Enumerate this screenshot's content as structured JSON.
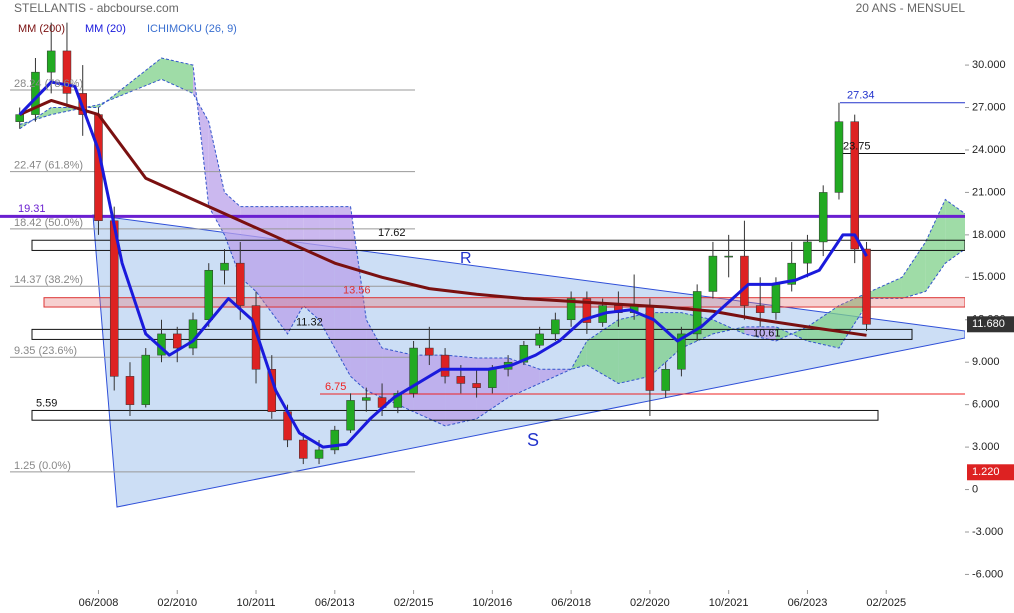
{
  "chart_data": {
    "type": "candlestick",
    "title": "STELLANTIS - abcbourse.com",
    "subtitle": "20 ANS - MENSUEL",
    "xlim": [
      "05/2006",
      "10/2026"
    ],
    "ylim": [
      -7.1,
      34.6
    ],
    "xticks": [
      "06/2008",
      "02/2010",
      "10/2011",
      "06/2013",
      "02/2015",
      "10/2016",
      "06/2018",
      "02/2020",
      "10/2021",
      "06/2023",
      "02/2025"
    ],
    "yticks": [
      {
        "value": 30,
        "label": "30.000"
      },
      {
        "value": 27,
        "label": "27.000"
      },
      {
        "value": 24,
        "label": "24.000"
      },
      {
        "value": 21,
        "label": "21.000"
      },
      {
        "value": 18,
        "label": "18.000"
      },
      {
        "value": 15,
        "label": "15.000"
      },
      {
        "value": 12,
        "label": "12.000"
      },
      {
        "value": 9,
        "label": "9.000"
      },
      {
        "value": 6,
        "label": "6.000"
      },
      {
        "value": 3,
        "label": "3.000"
      },
      0,
      {
        "value": -3,
        "label": "-3.000"
      },
      {
        "value": -6,
        "label": "-6.000"
      }
    ],
    "up_color": "#22aa22",
    "down_color": "#dd2222",
    "candles": {
      "x": [
        "10/2006",
        "02/2007",
        "06/2007",
        "10/2007",
        "02/2008",
        "06/2008",
        "10/2008",
        "02/2009",
        "06/2009",
        "10/2009",
        "02/2010",
        "06/2010",
        "10/2010",
        "02/2011",
        "06/2011",
        "10/2011",
        "02/2012",
        "06/2012",
        "10/2012",
        "02/2013",
        "06/2013",
        "10/2013",
        "02/2014",
        "06/2014",
        "10/2014",
        "02/2015",
        "06/2015",
        "10/2015",
        "02/2016",
        "06/2016",
        "10/2016",
        "02/2017",
        "06/2017",
        "10/2017",
        "02/2018",
        "06/2018",
        "10/2018",
        "02/2019",
        "06/2019",
        "10/2019",
        "02/2020",
        "06/2020",
        "10/2020",
        "02/2021",
        "06/2021",
        "10/2021",
        "02/2022",
        "06/2022",
        "10/2022",
        "02/2023",
        "06/2023",
        "10/2023",
        "02/2024",
        "06/2024",
        "09/2024"
      ],
      "open": [
        26,
        26.5,
        29.5,
        31,
        28,
        26.5,
        19,
        8,
        6,
        9.5,
        11,
        10,
        12,
        15.5,
        16,
        13,
        8.5,
        5.5,
        3.5,
        2.2,
        2.8,
        4.2,
        6.3,
        6.5,
        5.8,
        6.8,
        10,
        9.5,
        8,
        7.5,
        7.2,
        8.5,
        9,
        10.2,
        11,
        12,
        13.5,
        11.8,
        13,
        12.5,
        13,
        7,
        8.5,
        11,
        14,
        16.5,
        16.5,
        13,
        12.5,
        14.5,
        16,
        17.5,
        21,
        26,
        17
      ],
      "high": [
        27,
        30.5,
        33,
        33,
        30,
        27,
        20,
        9,
        10,
        12,
        11.5,
        12.5,
        16,
        17,
        17.5,
        14,
        9.5,
        6,
        4,
        3.5,
        4.5,
        6.8,
        7.2,
        7.5,
        7,
        10.5,
        11.5,
        10,
        8.8,
        8.5,
        8.8,
        9.5,
        10.5,
        11.5,
        12.5,
        14,
        14,
        13.5,
        14,
        15.2,
        13.5,
        9,
        11.5,
        14.5,
        17.5,
        18,
        19,
        15,
        15,
        17.5,
        18,
        21.5,
        27.34,
        26.5,
        17.5
      ],
      "low": [
        25.5,
        26,
        28,
        27,
        25,
        18,
        7,
        5.2,
        5.8,
        9,
        9,
        9.5,
        11.5,
        14.5,
        12,
        7.5,
        5,
        3,
        1.8,
        1.8,
        2.5,
        4,
        5.5,
        5.2,
        5.4,
        6.5,
        8.8,
        7.5,
        6.8,
        6.5,
        6.8,
        8,
        8.8,
        10,
        10.5,
        11.5,
        11,
        11.5,
        11.5,
        12,
        5.2,
        6.5,
        8,
        10.5,
        13.5,
        15,
        12,
        11.5,
        12,
        14,
        15,
        16.5,
        20.5,
        16,
        11.2
      ],
      "close": [
        26.5,
        29.5,
        31,
        28,
        26.5,
        19,
        8,
        6,
        9.5,
        11,
        10,
        12,
        15.5,
        16,
        13,
        8.5,
        5.5,
        3.5,
        2.2,
        2.8,
        4.2,
        6.3,
        6.5,
        5.8,
        6.8,
        10,
        9.5,
        8,
        7.5,
        7.2,
        8.5,
        9,
        10.2,
        11,
        12,
        13.5,
        11.8,
        13,
        12.5,
        13,
        7,
        8.5,
        11,
        14,
        16.5,
        16.5,
        13,
        12.5,
        14.5,
        16,
        17.5,
        21,
        26,
        17,
        11.68
      ]
    },
    "series": [
      {
        "name": "MM (200)",
        "color": "#7a1010",
        "x": [
          "10/2006",
          "06/2007",
          "06/2008",
          "06/2009",
          "06/2010",
          "06/2011",
          "06/2012",
          "06/2013",
          "06/2014",
          "06/2015",
          "06/2016",
          "06/2017",
          "06/2018",
          "06/2019",
          "06/2020",
          "06/2021",
          "06/2022",
          "06/2023",
          "09/2024"
        ],
        "values": [
          26.5,
          27.5,
          26.5,
          22,
          20.5,
          19,
          17.5,
          16,
          15,
          14.2,
          13.8,
          13.5,
          13.3,
          13.1,
          12.9,
          12.6,
          12,
          11.5,
          10.9
        ]
      },
      {
        "name": "MM (20)",
        "color": "#1a1adc",
        "x": [
          "10/2006",
          "06/2007",
          "12/2007",
          "06/2008",
          "12/2008",
          "06/2009",
          "12/2009",
          "06/2010",
          "03/2011",
          "09/2011",
          "03/2012",
          "09/2012",
          "03/2013",
          "09/2013",
          "03/2014",
          "09/2014",
          "03/2015",
          "09/2015",
          "03/2016",
          "09/2016",
          "03/2017",
          "09/2017",
          "03/2018",
          "09/2018",
          "03/2019",
          "09/2019",
          "03/2020",
          "09/2020",
          "03/2021",
          "09/2021",
          "03/2022",
          "09/2022",
          "03/2023",
          "09/2023",
          "03/2024",
          "06/2024",
          "09/2024"
        ],
        "values": [
          26.5,
          28.8,
          28.5,
          24,
          16,
          11,
          9.5,
          10.5,
          13.5,
          12,
          7,
          4,
          3,
          3.2,
          5,
          6.5,
          7.5,
          8.5,
          8.5,
          8.5,
          8.8,
          9.5,
          10.5,
          12,
          12.5,
          12.7,
          12,
          10.5,
          11.5,
          13,
          14.5,
          14.5,
          14.8,
          15.5,
          18,
          18,
          16.5
        ]
      }
    ],
    "ichimoku": {
      "name": "ICHIMOKU (26, 9)",
      "color": "#3a6fd0",
      "up_color": "#7fd08a",
      "down_color": "#b9a0ea",
      "x": [
        "10/2006",
        "06/2007",
        "06/2008",
        "10/2009",
        "06/2010",
        "10/2010",
        "02/2011",
        "06/2011",
        "10/2011",
        "06/2012",
        "10/2012",
        "02/2013",
        "06/2013",
        "10/2013",
        "02/2014",
        "06/2014",
        "02/2015",
        "10/2015",
        "06/2016",
        "02/2017",
        "10/2017",
        "06/2018",
        "10/2018",
        "06/2019",
        "02/2020",
        "10/2020",
        "06/2021",
        "02/2022",
        "10/2022",
        "06/2023",
        "02/2024",
        "10/2024",
        "06/2025",
        "12/2025",
        "05/2026",
        "10/2026"
      ],
      "span_a": [
        25.5,
        27,
        27,
        30.5,
        30,
        20,
        18,
        15,
        14,
        11,
        13,
        12,
        10,
        8,
        7,
        6.5,
        5.5,
        4.5,
        5,
        6.5,
        7.5,
        8.5,
        10.5,
        12,
        12.5,
        12.5,
        12,
        11,
        10.5,
        11.5,
        13,
        14,
        15,
        17.5,
        20.5,
        19.5
      ],
      "span_b": [
        25.8,
        26.5,
        27.2,
        29,
        28,
        26,
        21,
        20,
        20,
        20,
        20,
        20,
        20,
        20,
        12,
        10,
        9.5,
        9.5,
        9.3,
        9.3,
        8.5,
        8.5,
        8.8,
        7.5,
        8,
        10,
        11,
        11.5,
        11.5,
        10.5,
        10,
        13.5,
        13.5,
        14,
        16,
        17
      ]
    },
    "fibonacci": [
      {
        "value": 28.24,
        "label": "28.24 (78.6%)"
      },
      {
        "value": 22.47,
        "label": "22.47 (61.8%)"
      },
      {
        "value": 18.42,
        "label": "18.42 (50.0%)"
      },
      {
        "value": 14.37,
        "label": "14.37 (38.2%)"
      },
      {
        "value": 9.35,
        "label": "9.35 (23.6%)"
      },
      {
        "value": 1.25,
        "label": "1.25 (0.0%)"
      }
    ],
    "lines": [
      27.34,
      23.75,
      19.31,
      6.75
    ],
    "zones": [
      {
        "high": 17.62,
        "low": 16.9
      },
      {
        "high": 13.56,
        "low": 12.9
      },
      {
        "high": 11.32,
        "low": 10.61
      },
      {
        "high": 5.59,
        "low": 4.9
      }
    ],
    "last": {
      "value": 11.68,
      "label": "11.680"
    },
    "marker": {
      "value": 1.22,
      "label": "1.220"
    },
    "annotations": [
      "R",
      "S"
    ]
  }
}
